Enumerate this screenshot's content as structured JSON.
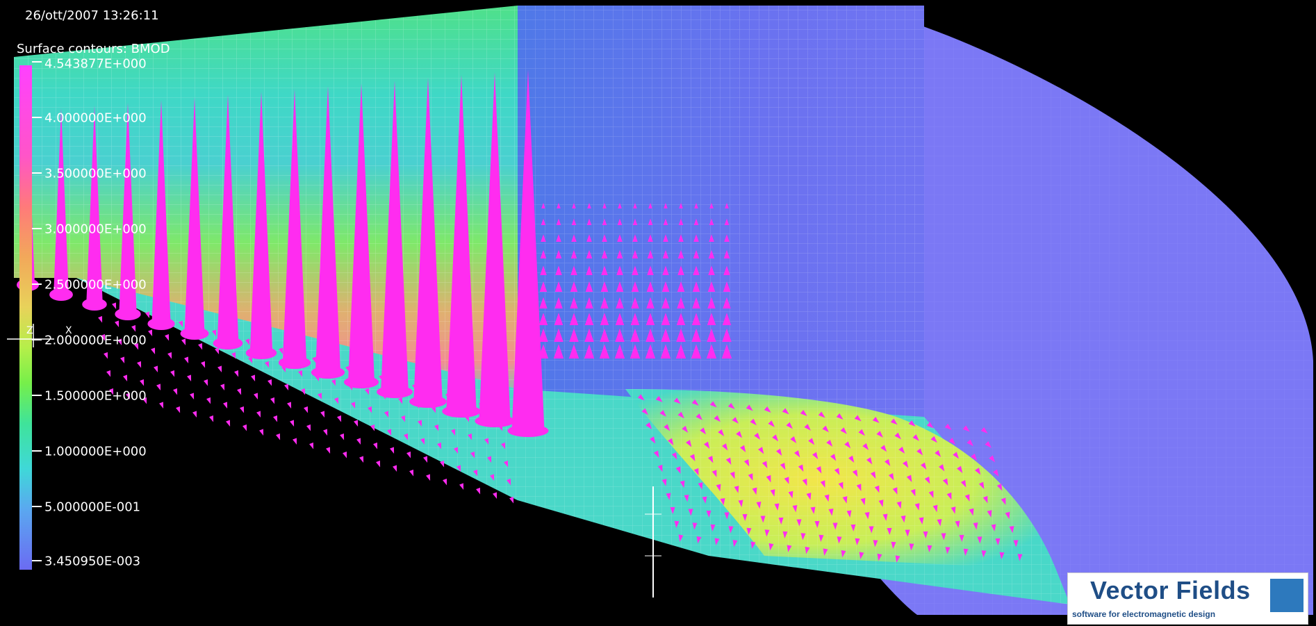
{
  "header": {
    "timestamp": "26/ott/2007 13:26:11",
    "legend_title": "Surface contours: BMOD"
  },
  "legend": {
    "labels": [
      "4.543877E+000",
      "4.000000E+000",
      "3.500000E+000",
      "3.000000E+000",
      "2.500000E+000",
      "2.000000E+000",
      "1.500000E+000",
      "1.000000E+000",
      "5.000000E-001",
      "3.450950E-003"
    ],
    "max": 4.543877,
    "min": 0.00345095
  },
  "axes": {
    "labels": [
      "Z",
      "X"
    ]
  },
  "logo": {
    "title": "Vector Fields",
    "subtitle": "software for electromagnetic design"
  },
  "colors": {
    "background": "#000000",
    "field_high": "#ff40ff",
    "field_mid": "#3fe39a",
    "field_low": "#6b6bf2",
    "arrow": "#ff2cf0",
    "logo_text": "#1f4e86"
  }
}
